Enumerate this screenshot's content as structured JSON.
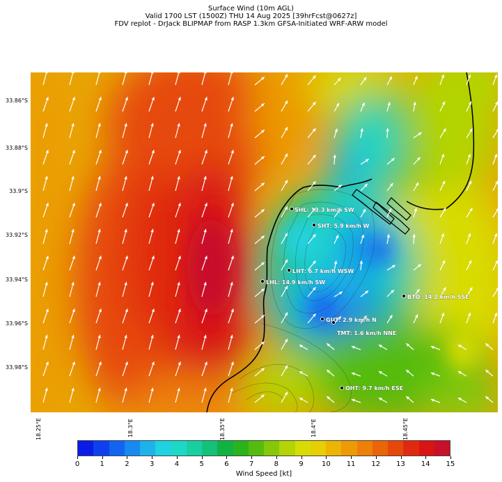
{
  "title": {
    "line1": "Surface Wind (10m AGL)",
    "line2": "Valid 1700 LST (1500Z) THU 14 Aug 2025 [39hrFcst@0627z]",
    "line3": "FDV replot - DrJack BLIPMAP from RASP 1.3km GFSA-Initiated WRF-ARW model"
  },
  "axes": {
    "lat_labels": [
      "33.86°S",
      "33.88°S",
      "33.9°S",
      "33.92°S",
      "33.94°S",
      "33.96°S",
      "33.98°S"
    ],
    "lon_labels": [
      "18.25°E",
      "18.3°E",
      "18.35°E",
      "18.4°E",
      "18.45°E"
    ]
  },
  "stations": [
    {
      "label": "SHL: 13.3 km/h SW"
    },
    {
      "label": "SHT: 5.9 km/h W"
    },
    {
      "label": "LHT: 6.7 km/h WSW"
    },
    {
      "label": "LHL: 14.9 km/h SW"
    },
    {
      "label": "BTO: 14.2 km/h SSE"
    },
    {
      "label": "GUT: 2.9 km/h N"
    },
    {
      "label": "TMT: 1.6 km/h NNE"
    },
    {
      "label": "OHT: 9.7 km/h ESE"
    }
  ],
  "colorbar": {
    "label": "Wind Speed [kt]",
    "ticks": [
      "0",
      "1",
      "2",
      "3",
      "4",
      "5",
      "6",
      "7",
      "8",
      "9",
      "10",
      "11",
      "12",
      "13",
      "14",
      "15"
    ],
    "colors": [
      "#0a1de6",
      "#0f40ee",
      "#1264f0",
      "#1889f0",
      "#1eb2ea",
      "#20d2e0",
      "#1ed8c6",
      "#18cfa0",
      "#14c07a",
      "#12b242",
      "#2ab31c",
      "#55bb10",
      "#85c808",
      "#b3d406",
      "#d8dc04",
      "#e6cf04",
      "#ecb404",
      "#ec9a06",
      "#ec8008",
      "#ea640a",
      "#e6480c",
      "#e02a10",
      "#d81414",
      "#c8102a"
    ]
  }
}
